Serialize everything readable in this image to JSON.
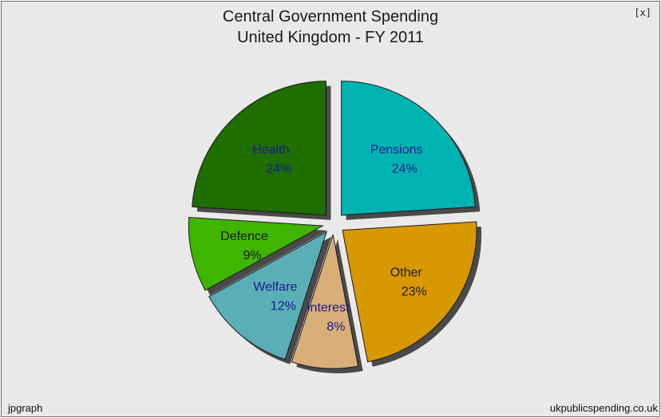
{
  "chart_data": {
    "type": "pie",
    "title": "Central Government Spending",
    "subtitle": "United Kingdom - FY 2011",
    "slices": [
      {
        "label": "Pensions",
        "value": 24,
        "percent_label": "24%",
        "color": "#00b3b3",
        "label_color": "#1c1c8c"
      },
      {
        "label": "Other",
        "value": 23,
        "percent_label": "23%",
        "color": "#d89800",
        "label_color": "#1a1a1a"
      },
      {
        "label": "Interest",
        "value": 8,
        "percent_label": "8%",
        "color": "#d9ae78",
        "label_color": "#1c1c8c"
      },
      {
        "label": "Welfare",
        "value": 12,
        "percent_label": "12%",
        "color": "#5aaeb5",
        "label_color": "#1c1c8c"
      },
      {
        "label": "Defence",
        "value": 9,
        "percent_label": "9%",
        "color": "#3fb500",
        "label_color": "#1a1a1a"
      },
      {
        "label": "Health",
        "value": 24,
        "percent_label": "24%",
        "color": "#1e6e00",
        "label_color": "#1c1c8c"
      }
    ]
  },
  "close_label": "[x]",
  "footer": {
    "left": "jpgraph",
    "right": "ukpublicspending.co.uk"
  }
}
